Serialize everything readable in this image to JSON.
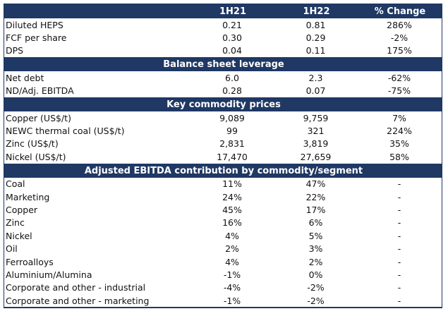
{
  "header": {
    "col0": "",
    "col1": "1H21",
    "col2": "1H22",
    "col3": "% Change"
  },
  "group1": [
    {
      "label": "Diluted HEPS",
      "v1": "0.21",
      "v2": "0.81",
      "v3": "286%"
    },
    {
      "label": "FCF per share",
      "v1": "0.30",
      "v2": "0.29",
      "v3": "-2%"
    },
    {
      "label": "DPS",
      "v1": "0.04",
      "v2": "0.11",
      "v3": "175%"
    }
  ],
  "section_leverage": "Balance  sheet leverage",
  "group2": [
    {
      "label": "Net debt",
      "v1": "6.0",
      "v2": "2.3",
      "v3": "-62%"
    },
    {
      "label": "ND/Adj. EBITDA",
      "v1": "0.28",
      "v2": "0.07",
      "v3": "-75%"
    }
  ],
  "section_commodity": "Key commodity prices",
  "group3": [
    {
      "label": "Copper (US$/t)",
      "v1": "9,089",
      "v2": "9,759",
      "v3": "7%"
    },
    {
      "label": "NEWC thermal coal (US$/t)",
      "v1": "99",
      "v2": "321",
      "v3": "224%"
    },
    {
      "label": "Zinc (US$/t)",
      "v1": "2,831",
      "v2": "3,819",
      "v3": "35%"
    },
    {
      "label": "Nickel (US$/t)",
      "v1": "17,470",
      "v2": "27,659",
      "v3": "58%"
    }
  ],
  "section_ebitda": "Adjusted EBITDA contribution by commodity/segment",
  "group4": [
    {
      "label": "Coal",
      "v1": "11%",
      "v2": "47%",
      "v3": "-"
    },
    {
      "label": "Marketing",
      "v1": "24%",
      "v2": "22%",
      "v3": "-"
    },
    {
      "label": "Copper",
      "v1": "45%",
      "v2": "17%",
      "v3": "-"
    },
    {
      "label": "Zinc",
      "v1": "16%",
      "v2": "6%",
      "v3": "-"
    },
    {
      "label": "Nickel",
      "v1": "4%",
      "v2": "5%",
      "v3": "-"
    },
    {
      "label": "Oil",
      "v1": "2%",
      "v2": "3%",
      "v3": "-"
    },
    {
      "label": "Ferroalloys",
      "v1": "4%",
      "v2": "2%",
      "v3": "-"
    },
    {
      "label": "Aluminium/Alumina",
      "v1": "-1%",
      "v2": "0%",
      "v3": "-"
    },
    {
      "label": "Corporate and other - industrial",
      "v1": "-4%",
      "v2": "-2%",
      "v3": "-"
    },
    {
      "label": "Corporate and other - marketing",
      "v1": "-1%",
      "v2": "-2%",
      "v3": "-"
    }
  ]
}
